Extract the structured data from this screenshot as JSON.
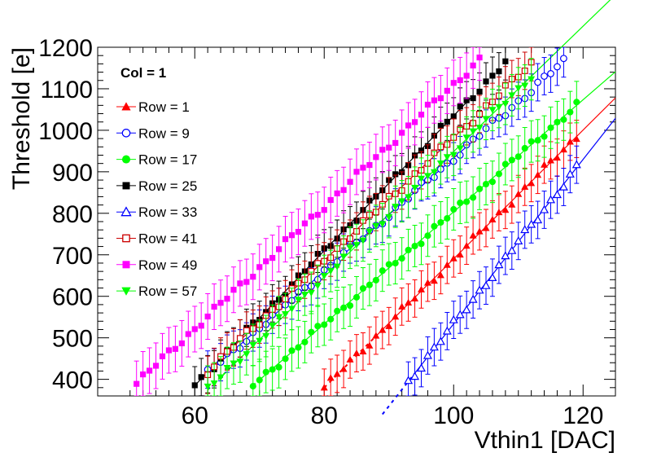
{
  "chart_data": {
    "type": "scatter",
    "title": "",
    "xlabel": "Vthin1 [DAC]",
    "ylabel": "Threshold [e]",
    "xlim": [
      45,
      125
    ],
    "ylim": [
      360,
      1200
    ],
    "xticks": [
      60,
      80,
      100,
      120
    ],
    "yticks": [
      400,
      500,
      600,
      700,
      800,
      900,
      1000,
      1100,
      1200
    ],
    "legend_title": "Col = 1",
    "legend_position": "top-left",
    "series": [
      {
        "name": "Row = 1",
        "color": "#ff0000",
        "marker": "triangle-filled",
        "x_start": 80,
        "x_end": 119,
        "y_start": 380,
        "y_end": 985,
        "fit_x_start": 80,
        "fit_x_end": 125,
        "fit_dash_until": 88,
        "err": 45
      },
      {
        "name": "Row = 9",
        "color": "#0000ff",
        "marker": "circle-open",
        "x_start": 62,
        "x_end": 117,
        "y_start": 415,
        "y_end": 1165,
        "fit_x_start": 62,
        "fit_x_end": 104,
        "fit_dash_until": 62,
        "err": 45
      },
      {
        "name": "Row = 17",
        "color": "#00ff00",
        "marker": "circle-filled",
        "x_start": 69,
        "x_end": 119,
        "y_start": 385,
        "y_end": 1060,
        "fit_x_start": 69,
        "fit_x_end": 125,
        "fit_dash_until": 70,
        "err": 50
      },
      {
        "name": "Row = 25",
        "color": "#000000",
        "marker": "square-filled",
        "x_start": 60,
        "x_end": 108,
        "y_start": 385,
        "y_end": 1165,
        "fit_x_start": 60,
        "fit_x_end": 103,
        "fit_dash_until": 60,
        "err": 45
      },
      {
        "name": "Row = 33",
        "color": "#0000ff",
        "marker": "triangle-open",
        "x_start": 93,
        "x_end": 119,
        "y_start": 395,
        "y_end": 910,
        "fit_x_start": 89,
        "fit_x_end": 125,
        "fit_dash_until": 94,
        "err": 45
      },
      {
        "name": "Row = 41",
        "color": "#cc0000",
        "marker": "square-open",
        "x_start": 62,
        "x_end": 112,
        "y_start": 420,
        "y_end": 1160,
        "fit_x_start": 62,
        "fit_x_end": 103,
        "fit_dash_until": 62,
        "err": 45
      },
      {
        "name": "Row = 49",
        "color": "#ff00ff",
        "marker": "square-filled",
        "x_start": 51,
        "x_end": 104,
        "y_start": 390,
        "y_end": 1170,
        "fit_x_start": 51,
        "fit_x_end": 51,
        "fit_dash_until": 51,
        "err": 55
      },
      {
        "name": "Row = 57",
        "color": "#00ff00",
        "marker": "triangle-down-filled",
        "x_start": 62,
        "x_end": 112,
        "y_start": 375,
        "y_end": 1130,
        "fit_x_start": 62,
        "fit_x_end": 125,
        "fit_dash_until": 66,
        "err": 50
      }
    ]
  }
}
